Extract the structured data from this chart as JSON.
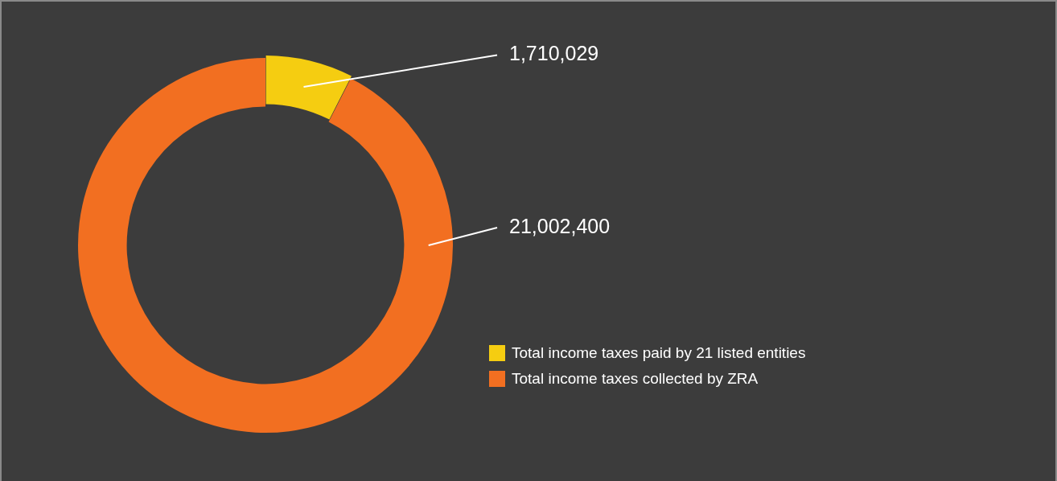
{
  "chart_data": {
    "type": "donut",
    "categories": [
      "Total income taxes paid by 21 listed entities",
      "Total income taxes collected by ZRA"
    ],
    "values": [
      1710029,
      21002400
    ],
    "colors": [
      "#f5cd11",
      "#f26f21"
    ],
    "value_labels": [
      "1,710,029",
      "21,002,400"
    ],
    "legend": "right"
  }
}
